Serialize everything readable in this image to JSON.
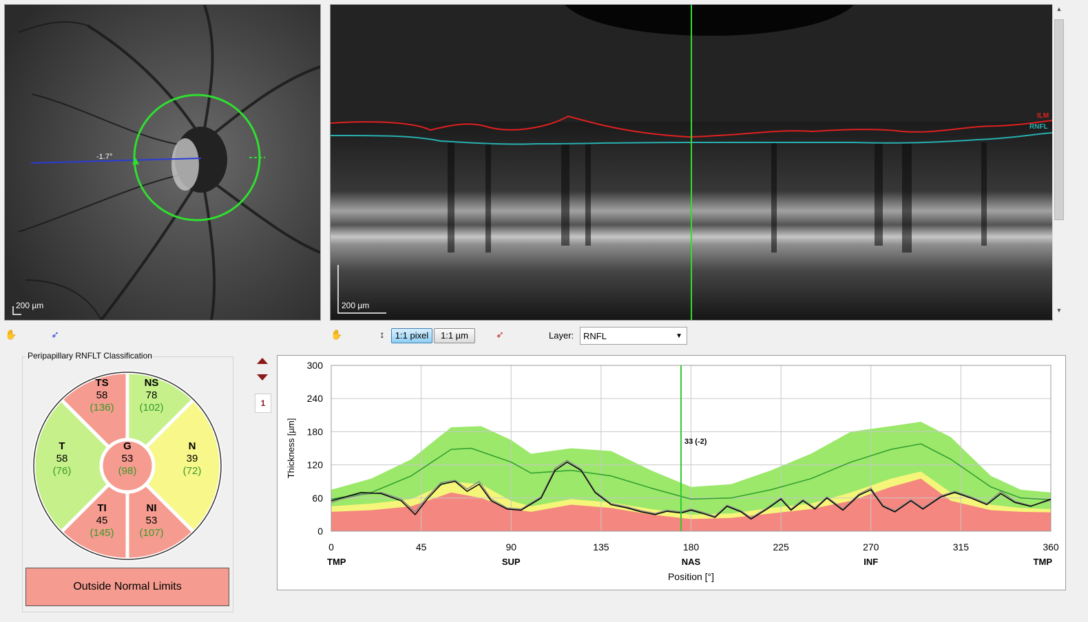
{
  "fundus": {
    "scale_label": "200 µm",
    "angle_label": "-1.7°"
  },
  "bscan": {
    "scale_label": "200 µm",
    "layer_tags": [
      "ILM",
      "RNFL"
    ]
  },
  "toolbar": {
    "hand_icon": "hand-icon",
    "pointer_icon": "pointer-icon",
    "pixel_button": "1:1 pixel",
    "micron_button": "1:1 µm",
    "layer_label": "Layer:",
    "layer_value": "RNFL"
  },
  "classification": {
    "title": "Peripapillary RNFLT Classification",
    "status": "Outside Normal Limits",
    "sectors": [
      {
        "id": "TS",
        "label": "TS",
        "value": "58",
        "ref": "(136)",
        "color": "#f59b8f"
      },
      {
        "id": "NS",
        "label": "NS",
        "value": "78",
        "ref": "(102)",
        "color": "#c5f08a"
      },
      {
        "id": "N",
        "label": "N",
        "value": "39",
        "ref": "(72)",
        "color": "#f7f78a"
      },
      {
        "id": "NI",
        "label": "NI",
        "value": "53",
        "ref": "(107)",
        "color": "#f59b8f"
      },
      {
        "id": "TI",
        "label": "TI",
        "value": "45",
        "ref": "(145)",
        "color": "#f59b8f"
      },
      {
        "id": "T",
        "label": "T",
        "value": "58",
        "ref": "(76)",
        "color": "#c5f08a"
      },
      {
        "id": "G",
        "label": "G",
        "value": "53",
        "ref": "(98)",
        "color": "#f59b8f"
      }
    ]
  },
  "side": {
    "page_number": "1"
  },
  "chart_data": {
    "type": "line",
    "ylabel": "Thickness [µm]",
    "xlabel": "Position [°]",
    "xlim": [
      0,
      360
    ],
    "ylim": [
      0,
      300
    ],
    "x_ticks": [
      "0",
      "45",
      "90",
      "135",
      "180",
      "225",
      "270",
      "315",
      "360"
    ],
    "y_ticks": [
      "0",
      "60",
      "120",
      "180",
      "240",
      "300"
    ],
    "sector_labels": [
      {
        "x": 0,
        "label": "TMP"
      },
      {
        "x": 90,
        "label": "SUP"
      },
      {
        "x": 180,
        "label": "NAS"
      },
      {
        "x": 270,
        "label": "INF"
      },
      {
        "x": 360,
        "label": "TMP"
      }
    ],
    "cursor": {
      "x": 175,
      "label": "33 (-2)"
    },
    "grid": true,
    "colors": {
      "green_band": "#9be86a",
      "yellow_band": "#f5f57a",
      "red_band": "#f4877f",
      "normal": "#2e9b2e",
      "measured": "#000000",
      "measured2": "#8a8a8a",
      "cursor": "#2ecc2e"
    },
    "normal_upper": [
      [
        0,
        75
      ],
      [
        20,
        95
      ],
      [
        40,
        130
      ],
      [
        60,
        188
      ],
      [
        75,
        190
      ],
      [
        90,
        165
      ],
      [
        100,
        140
      ],
      [
        120,
        150
      ],
      [
        140,
        145
      ],
      [
        160,
        110
      ],
      [
        180,
        80
      ],
      [
        200,
        85
      ],
      [
        220,
        110
      ],
      [
        240,
        140
      ],
      [
        260,
        180
      ],
      [
        280,
        190
      ],
      [
        295,
        198
      ],
      [
        310,
        170
      ],
      [
        330,
        100
      ],
      [
        345,
        75
      ],
      [
        360,
        70
      ]
    ],
    "yellow_upper": [
      [
        0,
        45
      ],
      [
        20,
        50
      ],
      [
        40,
        58
      ],
      [
        60,
        90
      ],
      [
        75,
        85
      ],
      [
        90,
        55
      ],
      [
        100,
        45
      ],
      [
        120,
        58
      ],
      [
        140,
        52
      ],
      [
        160,
        40
      ],
      [
        180,
        30
      ],
      [
        200,
        32
      ],
      [
        220,
        42
      ],
      [
        240,
        50
      ],
      [
        260,
        70
      ],
      [
        280,
        95
      ],
      [
        295,
        108
      ],
      [
        310,
        70
      ],
      [
        330,
        48
      ],
      [
        345,
        42
      ],
      [
        360,
        40
      ]
    ],
    "red_upper": [
      [
        0,
        35
      ],
      [
        20,
        38
      ],
      [
        40,
        45
      ],
      [
        60,
        70
      ],
      [
        75,
        60
      ],
      [
        90,
        40
      ],
      [
        100,
        35
      ],
      [
        120,
        48
      ],
      [
        140,
        42
      ],
      [
        160,
        30
      ],
      [
        180,
        22
      ],
      [
        200,
        24
      ],
      [
        220,
        32
      ],
      [
        240,
        40
      ],
      [
        260,
        55
      ],
      [
        280,
        80
      ],
      [
        295,
        95
      ],
      [
        310,
        55
      ],
      [
        330,
        38
      ],
      [
        345,
        35
      ],
      [
        360,
        34
      ]
    ],
    "normal_mean": [
      [
        0,
        58
      ],
      [
        20,
        70
      ],
      [
        40,
        100
      ],
      [
        60,
        148
      ],
      [
        70,
        150
      ],
      [
        90,
        125
      ],
      [
        100,
        105
      ],
      [
        120,
        110
      ],
      [
        140,
        100
      ],
      [
        160,
        78
      ],
      [
        180,
        58
      ],
      [
        200,
        60
      ],
      [
        220,
        75
      ],
      [
        240,
        95
      ],
      [
        260,
        125
      ],
      [
        280,
        148
      ],
      [
        295,
        158
      ],
      [
        310,
        130
      ],
      [
        330,
        80
      ],
      [
        345,
        60
      ],
      [
        360,
        57
      ]
    ],
    "measured": [
      [
        0,
        55
      ],
      [
        5,
        60
      ],
      [
        15,
        70
      ],
      [
        25,
        68
      ],
      [
        35,
        55
      ],
      [
        42,
        30
      ],
      [
        48,
        58
      ],
      [
        55,
        85
      ],
      [
        62,
        90
      ],
      [
        68,
        72
      ],
      [
        74,
        85
      ],
      [
        80,
        55
      ],
      [
        88,
        40
      ],
      [
        95,
        38
      ],
      [
        105,
        60
      ],
      [
        112,
        110
      ],
      [
        118,
        125
      ],
      [
        125,
        110
      ],
      [
        132,
        70
      ],
      [
        140,
        48
      ],
      [
        148,
        42
      ],
      [
        155,
        35
      ],
      [
        162,
        30
      ],
      [
        168,
        36
      ],
      [
        175,
        33
      ],
      [
        180,
        38
      ],
      [
        186,
        32
      ],
      [
        192,
        25
      ],
      [
        198,
        45
      ],
      [
        205,
        35
      ],
      [
        210,
        22
      ],
      [
        218,
        40
      ],
      [
        225,
        58
      ],
      [
        230,
        38
      ],
      [
        236,
        55
      ],
      [
        242,
        40
      ],
      [
        248,
        60
      ],
      [
        256,
        38
      ],
      [
        264,
        65
      ],
      [
        270,
        75
      ],
      [
        276,
        45
      ],
      [
        282,
        35
      ],
      [
        290,
        55
      ],
      [
        296,
        40
      ],
      [
        305,
        62
      ],
      [
        312,
        70
      ],
      [
        320,
        60
      ],
      [
        328,
        48
      ],
      [
        335,
        68
      ],
      [
        342,
        52
      ],
      [
        350,
        45
      ],
      [
        360,
        58
      ]
    ],
    "measured2": [
      [
        0,
        52
      ],
      [
        5,
        58
      ],
      [
        15,
        66
      ],
      [
        25,
        70
      ],
      [
        35,
        58
      ],
      [
        42,
        35
      ],
      [
        48,
        62
      ],
      [
        55,
        88
      ],
      [
        62,
        92
      ],
      [
        68,
        76
      ],
      [
        74,
        90
      ],
      [
        80,
        58
      ],
      [
        88,
        42
      ],
      [
        95,
        40
      ],
      [
        105,
        62
      ],
      [
        112,
        114
      ],
      [
        118,
        128
      ],
      [
        125,
        112
      ],
      [
        132,
        72
      ],
      [
        140,
        50
      ],
      [
        148,
        44
      ],
      [
        155,
        37
      ],
      [
        162,
        32
      ],
      [
        168,
        38
      ],
      [
        175,
        35
      ],
      [
        180,
        40
      ],
      [
        186,
        34
      ],
      [
        192,
        27
      ],
      [
        198,
        47
      ],
      [
        205,
        37
      ],
      [
        210,
        24
      ],
      [
        218,
        42
      ],
      [
        225,
        60
      ],
      [
        230,
        40
      ],
      [
        236,
        57
      ],
      [
        242,
        42
      ],
      [
        248,
        62
      ],
      [
        256,
        40
      ],
      [
        264,
        67
      ],
      [
        270,
        78
      ],
      [
        276,
        47
      ],
      [
        282,
        37
      ],
      [
        290,
        57
      ],
      [
        296,
        42
      ],
      [
        305,
        64
      ],
      [
        312,
        72
      ],
      [
        320,
        62
      ],
      [
        328,
        50
      ],
      [
        335,
        72
      ],
      [
        342,
        54
      ],
      [
        350,
        46
      ],
      [
        360,
        56
      ]
    ]
  }
}
